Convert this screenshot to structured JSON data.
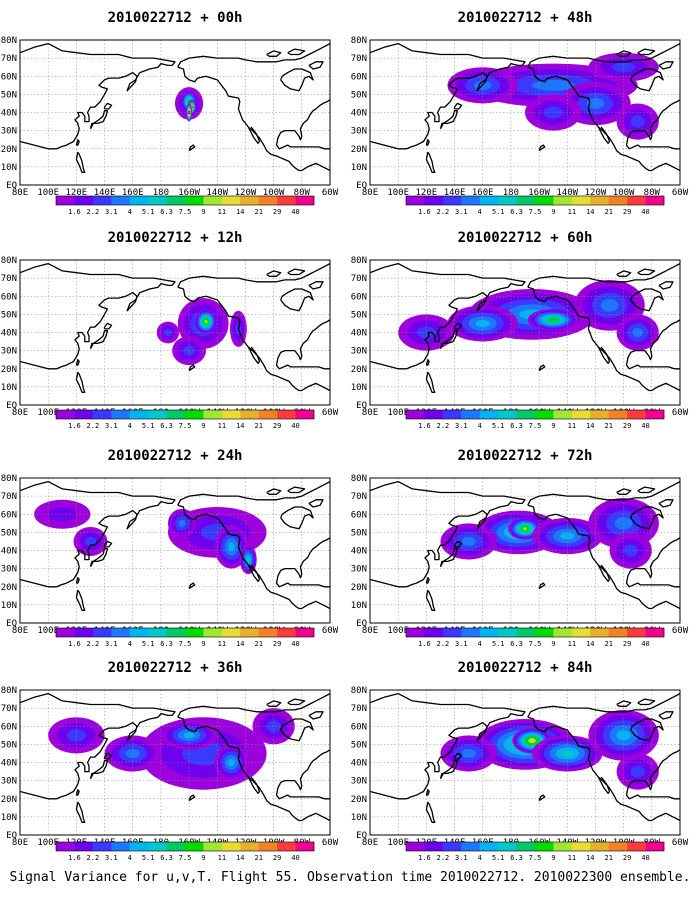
{
  "caption": "Signal Variance for u,v,T. Flight 55. Observation time 2010022712. 2010022300 ensemble.",
  "chart_data": {
    "type": "heatmap",
    "lon_ticks": [
      "80E",
      "100E",
      "120E",
      "140E",
      "160E",
      "180",
      "160W",
      "140W",
      "120W",
      "100W",
      "80W",
      "60W"
    ],
    "lat_ticks": [
      "80N",
      "70N",
      "60N",
      "50N",
      "40N",
      "30N",
      "20N",
      "10N",
      "EQ"
    ],
    "levels": [
      "1.6",
      "2.2",
      "3.1",
      "4",
      "5.1",
      "6.3",
      "7.5",
      "9",
      "11",
      "14",
      "21",
      "29",
      "40"
    ],
    "colors": [
      "#9b00dd",
      "#6e00ee",
      "#3a3aff",
      "#1e78ff",
      "#00b4f0",
      "#00c8c8",
      "#00c864",
      "#00dc00",
      "#a0e632",
      "#e6dc32",
      "#e6af2d",
      "#f08228",
      "#fa3c3c",
      "#f0008c"
    ],
    "grid": true,
    "panels": [
      {
        "title": "2010022712 + 00h",
        "blobs": [
          [
            -160,
            45,
            10,
            9,
            3
          ],
          [
            -160,
            46,
            6,
            6,
            7
          ],
          [
            -158,
            43,
            3,
            4,
            12
          ],
          [
            -160,
            40,
            2,
            5,
            14
          ]
        ]
      },
      {
        "title": "2010022712 + 12h",
        "blobs": [
          [
            -150,
            45,
            18,
            14,
            3
          ],
          [
            -148,
            46,
            8,
            7,
            8
          ],
          [
            -160,
            30,
            12,
            8,
            2
          ],
          [
            -175,
            40,
            8,
            6,
            2
          ],
          [
            -125,
            42,
            6,
            10,
            2
          ]
        ]
      },
      {
        "title": "2010022712 + 24h",
        "blobs": [
          [
            -140,
            50,
            35,
            14,
            2
          ],
          [
            -130,
            42,
            12,
            12,
            4
          ],
          [
            -118,
            35,
            6,
            8,
            5
          ],
          [
            -165,
            55,
            10,
            8,
            3
          ],
          [
            130,
            45,
            12,
            8,
            2
          ],
          [
            110,
            60,
            20,
            8,
            1
          ]
        ]
      },
      {
        "title": "2010022712 + 36h",
        "blobs": [
          [
            -150,
            45,
            45,
            20,
            2
          ],
          [
            -160,
            55,
            20,
            8,
            4
          ],
          [
            -130,
            40,
            12,
            10,
            4
          ],
          [
            160,
            45,
            20,
            10,
            3
          ],
          [
            120,
            55,
            20,
            10,
            2
          ],
          [
            -100,
            60,
            15,
            10,
            2
          ]
        ]
      },
      {
        "title": "2010022712 + 48h",
        "blobs": [
          [
            -150,
            55,
            60,
            12,
            3
          ],
          [
            -120,
            45,
            25,
            12,
            3
          ],
          [
            -150,
            40,
            20,
            10,
            2
          ],
          [
            160,
            55,
            25,
            10,
            3
          ],
          [
            -90,
            35,
            15,
            10,
            2
          ],
          [
            -100,
            65,
            25,
            8,
            2
          ]
        ]
      },
      {
        "title": "2010022712 + 60h",
        "blobs": [
          [
            -165,
            50,
            45,
            14,
            4
          ],
          [
            -150,
            47,
            18,
            6,
            7
          ],
          [
            160,
            45,
            25,
            10,
            4
          ],
          [
            -110,
            55,
            25,
            14,
            3
          ],
          [
            -90,
            40,
            15,
            10,
            3
          ],
          [
            120,
            40,
            20,
            10,
            2
          ]
        ]
      },
      {
        "title": "2010022712 + 72h",
        "blobs": [
          [
            -175,
            50,
            30,
            12,
            5
          ],
          [
            -170,
            52,
            12,
            6,
            8
          ],
          [
            -140,
            48,
            25,
            10,
            4
          ],
          [
            -100,
            55,
            25,
            14,
            3
          ],
          [
            150,
            45,
            20,
            10,
            3
          ],
          [
            -95,
            40,
            15,
            10,
            2
          ]
        ]
      },
      {
        "title": "2010022712 + 84h",
        "blobs": [
          [
            -170,
            50,
            35,
            14,
            6
          ],
          [
            -165,
            52,
            14,
            7,
            9
          ],
          [
            -140,
            45,
            25,
            10,
            5
          ],
          [
            -100,
            55,
            25,
            14,
            4
          ],
          [
            150,
            45,
            20,
            10,
            3
          ],
          [
            -90,
            35,
            15,
            10,
            2
          ]
        ]
      }
    ]
  }
}
